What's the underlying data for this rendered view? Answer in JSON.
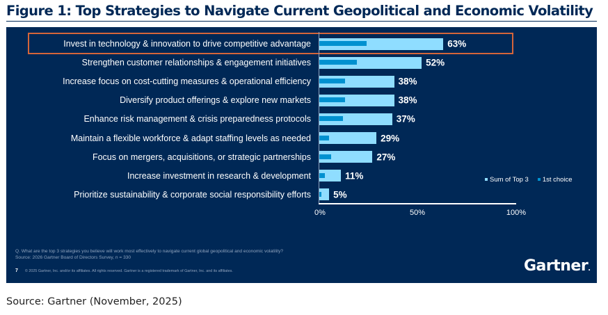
{
  "title": "Figure 1: Top Strategies to Navigate Current Geopolitical and Economic Volatility",
  "source_caption": "Source: Gartner (November, 2025)",
  "footer": {
    "question": "Q. What are the top 3 strategies you believe will work most effectively to navigate current global geopolitical and economic volatility?",
    "survey_source": "Source: 2026 Gartner Board of Directors Survey, n = 330",
    "page_number": "7",
    "copyright": "© 2025 Gartner, Inc. and/or its affiliates. All rights reserved. Gartner is a registered trademark of Gartner, Inc. and its affiliates.",
    "logo_text": "Gartner",
    "logo_dot": "."
  },
  "colors": {
    "background": "#002856",
    "sum_top3": "#8fddff",
    "first_choice": "#0091d0",
    "highlight": "#d5653a"
  },
  "chart_data": {
    "type": "bar",
    "orientation": "horizontal",
    "title": "Figure 1: Top Strategies to Navigate Current Geopolitical and Economic Volatility",
    "xlabel": "",
    "ylabel": "",
    "xlim": [
      0,
      100
    ],
    "x_ticks": [
      "0%",
      "50%",
      "100%"
    ],
    "grid": false,
    "legend_position": "right",
    "highlighted_category_index": 0,
    "categories": [
      "Invest in technology & innovation to drive competitive advantage",
      "Strengthen customer relationships & engagement initiatives",
      "Increase focus on cost-cutting measures & operational efficiency",
      "Diversify product offerings & explore new markets",
      "Enhance risk management & crisis preparedness protocols",
      "Maintain a flexible workforce & adapt staffing levels as needed",
      "Focus on mergers, acquisitions, or strategic partnerships",
      "Increase investment in research & development",
      "Prioritize sustainability & corporate social responsibility efforts"
    ],
    "series": [
      {
        "name": "Sum of Top 3",
        "values": [
          63,
          52,
          38,
          38,
          37,
          29,
          27,
          11,
          5
        ]
      },
      {
        "name": "1st choice",
        "values": [
          24,
          19,
          13,
          13,
          12,
          5,
          6,
          3,
          1
        ]
      }
    ],
    "data_labels": [
      "63%",
      "52%",
      "38%",
      "38%",
      "37%",
      "29%",
      "27%",
      "11%",
      "5%"
    ]
  }
}
